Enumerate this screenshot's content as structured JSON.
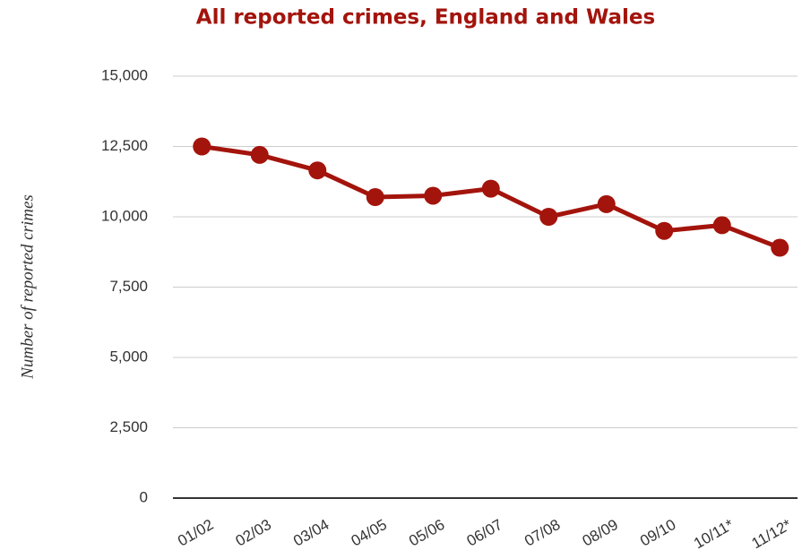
{
  "chart_data": {
    "type": "line",
    "title": "All reported crimes, England and Wales",
    "y_label": "Number of reported crimes",
    "categories": [
      "01/02",
      "02/03",
      "03/04",
      "04/05",
      "05/06",
      "06/07",
      "07/08",
      "08/09",
      "09/10",
      "10/11*",
      "11/12*"
    ],
    "series": [
      {
        "name": "All reported crimes",
        "color": "#a3140c",
        "values": [
          12500,
          12200,
          11650,
          10700,
          10750,
          11000,
          10000,
          10450,
          9500,
          9700,
          8900
        ]
      }
    ],
    "ylim": [
      0,
      15000
    ],
    "yticks": [
      0,
      {
        "value": 2500,
        "label": "2,500"
      },
      {
        "value": 5000,
        "label": "5,000"
      },
      {
        "value": 7500,
        "label": "7,500"
      },
      {
        "value": 10000,
        "label": "10,000"
      },
      {
        "value": 12500,
        "label": "12,500"
      },
      {
        "value": 15000,
        "label": "15,000"
      }
    ],
    "grid": true
  }
}
